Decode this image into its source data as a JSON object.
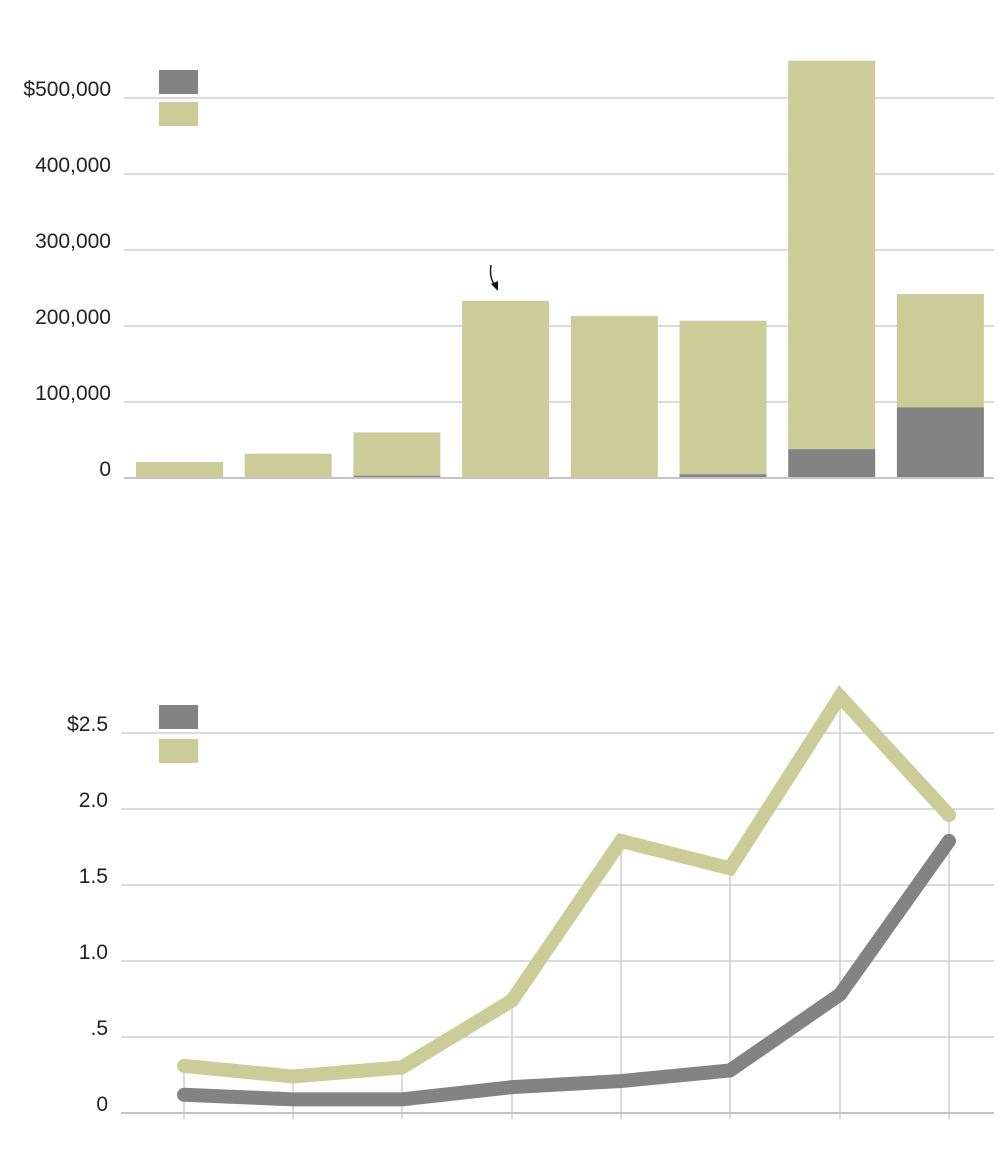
{
  "chart_data": [
    {
      "type": "bar",
      "stacked": true,
      "categories": [
        "",
        "",
        "",
        "",
        "",
        "",
        "",
        ""
      ],
      "series": [
        {
          "color": "#838383",
          "values": [
            0,
            0,
            3000,
            0,
            0,
            5000,
            38000,
            93000
          ]
        },
        {
          "color": "#cccc99",
          "values": [
            21000,
            32000,
            57000,
            233000,
            213000,
            202000,
            511000,
            149000
          ]
        }
      ],
      "ylim": [
        0,
        550000
      ],
      "yticks": [
        {
          "value": 0,
          "label": "0"
        },
        {
          "value": 100000,
          "label": "100,000"
        },
        {
          "value": 200000,
          "label": "200,000"
        },
        {
          "value": 300000,
          "label": "300,000"
        },
        {
          "value": 400000,
          "label": "400,000"
        },
        {
          "value": 500000,
          "label": "$500,000"
        }
      ],
      "grid": true,
      "legend": "top-left",
      "annotation": "arrow pointing to fourth bar"
    },
    {
      "type": "line",
      "x": [
        1,
        2,
        3,
        4,
        5,
        6,
        7,
        8
      ],
      "series": [
        {
          "color": "#838383",
          "values": [
            0.12,
            0.09,
            0.09,
            0.17,
            0.21,
            0.28,
            0.78,
            1.79
          ]
        },
        {
          "color": "#cccc99",
          "values": [
            0.31,
            0.24,
            0.3,
            0.74,
            1.79,
            1.61,
            2.74,
            1.96
          ]
        }
      ],
      "ylim": [
        0,
        2.5
      ],
      "yticks": [
        {
          "value": 0,
          "label": "0"
        },
        {
          "value": 0.5,
          "label": ".5"
        },
        {
          "value": 1.0,
          "label": "1.0"
        },
        {
          "value": 1.5,
          "label": "1.5"
        },
        {
          "value": 2.0,
          "label": "2.0"
        },
        {
          "value": 2.5,
          "label": "$2.5"
        }
      ],
      "grid": true,
      "legend": "top-left"
    }
  ]
}
